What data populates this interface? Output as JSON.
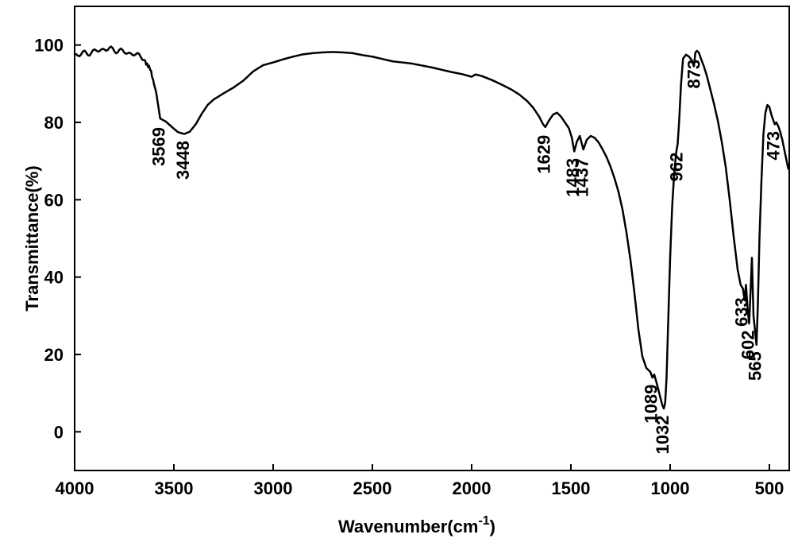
{
  "chart_data": {
    "type": "line",
    "title": "",
    "xlabel": "Wavenumber(cm",
    "xlabel_sup": "-1",
    "xlabel_close": ")",
    "ylabel": "Transmittance(%)",
    "xlim": [
      4000,
      400
    ],
    "ylim": [
      -10,
      110
    ],
    "xticks": [
      4000,
      3500,
      3000,
      2500,
      2000,
      1500,
      1000,
      500
    ],
    "yticks": [
      0,
      20,
      40,
      60,
      80,
      100
    ],
    "grid": false,
    "legend": "none",
    "line_color": "#000000",
    "series": [
      {
        "x": [
          4000,
          3950,
          3900,
          3850,
          3800,
          3750,
          3700,
          3650,
          3620,
          3590,
          3569,
          3540,
          3510,
          3480,
          3448,
          3420,
          3390,
          3360,
          3330,
          3300,
          3250,
          3200,
          3150,
          3100,
          3050,
          3000,
          2950,
          2900,
          2850,
          2800,
          2750,
          2700,
          2650,
          2600,
          2550,
          2500,
          2450,
          2400,
          2350,
          2300,
          2250,
          2200,
          2150,
          2100,
          2050,
          2000,
          1980,
          1950,
          1900,
          1850,
          1800,
          1760,
          1720,
          1690,
          1660,
          1640,
          1629,
          1610,
          1590,
          1570,
          1550,
          1530,
          1510,
          1495,
          1483,
          1470,
          1455,
          1445,
          1437,
          1420,
          1400,
          1380,
          1360,
          1340,
          1320,
          1300,
          1280,
          1260,
          1240,
          1220,
          1200,
          1180,
          1160,
          1140,
          1120,
          1100,
          1089,
          1080,
          1070,
          1060,
          1050,
          1040,
          1032,
          1025,
          1018,
          1010,
          1000,
          990,
          980,
          970,
          962,
          955,
          945,
          935,
          920,
          905,
          890,
          880,
          873,
          865,
          855,
          845,
          830,
          815,
          800,
          780,
          760,
          740,
          720,
          700,
          680,
          660,
          645,
          633,
          625,
          618,
          610,
          602,
          595,
          588,
          580,
          572,
          565,
          558,
          550,
          540,
          530,
          520,
          510,
          500,
          490,
          480,
          473,
          465,
          455,
          445,
          435,
          425,
          415,
          405
        ],
        "y": [
          97.5,
          97.8,
          98.3,
          99.0,
          98.8,
          98.2,
          97.6,
          96.8,
          93.5,
          88.0,
          81.0,
          80.2,
          78.8,
          77.5,
          77.0,
          77.6,
          79.5,
          82.2,
          84.5,
          85.9,
          87.5,
          89.0,
          90.8,
          93.2,
          94.8,
          95.5,
          96.3,
          97.0,
          97.6,
          97.9,
          98.1,
          98.2,
          98.1,
          97.9,
          97.4,
          97.0,
          96.4,
          95.8,
          95.5,
          95.2,
          94.7,
          94.2,
          93.6,
          93.0,
          92.5,
          91.8,
          92.4,
          92.0,
          91.0,
          89.8,
          88.5,
          87.2,
          85.5,
          83.8,
          81.5,
          79.5,
          78.8,
          80.5,
          82.0,
          82.5,
          81.5,
          80.0,
          78.5,
          76.0,
          72.5,
          75.0,
          76.5,
          74.5,
          73.0,
          75.5,
          76.5,
          76.0,
          74.8,
          73.0,
          71.0,
          68.5,
          65.5,
          62.0,
          57.5,
          51.5,
          44.5,
          36.0,
          26.5,
          19.5,
          16.5,
          15.5,
          14.0,
          14.8,
          13.0,
          11.0,
          9.0,
          7.0,
          6.0,
          7.5,
          14.0,
          28.0,
          45.0,
          58.0,
          66.5,
          72.0,
          74.5,
          80.0,
          90.0,
          96.5,
          97.5,
          97.0,
          96.0,
          94.5,
          98.0,
          98.5,
          98.0,
          96.5,
          94.5,
          92.0,
          89.0,
          85.0,
          80.5,
          75.0,
          68.5,
          60.0,
          50.5,
          42.0,
          38.0,
          37.0,
          34.0,
          38.0,
          32.0,
          28.0,
          36.0,
          45.0,
          30.0,
          26.0,
          22.5,
          33.0,
          50.0,
          65.0,
          77.0,
          82.5,
          84.5,
          84.0,
          82.0,
          80.5,
          79.5,
          80.0,
          79.0,
          77.5,
          75.5,
          73.0,
          70.5,
          68.0
        ]
      }
    ],
    "annotations": [
      {
        "text": "3569",
        "x": 3569,
        "y": 80.0
      },
      {
        "text": "3448",
        "x": 3448,
        "y": 76.5
      },
      {
        "text": "1629",
        "x": 1629,
        "y": 78.0
      },
      {
        "text": "1483",
        "x": 1483,
        "y": 72.0
      },
      {
        "text": "1437",
        "x": 1437,
        "y": 72.0
      },
      {
        "text": "1089",
        "x": 1089,
        "y": 13.5
      },
      {
        "text": "1032",
        "x": 1032,
        "y": 5.5
      },
      {
        "text": "962",
        "x": 962,
        "y": 73.5
      },
      {
        "text": "873",
        "x": 873,
        "y": 97.5
      },
      {
        "text": "633",
        "x": 633,
        "y": 36.0
      },
      {
        "text": "602",
        "x": 602,
        "y": 27.5
      },
      {
        "text": "565",
        "x": 565,
        "y": 22.0
      },
      {
        "text": "473",
        "x": 473,
        "y": 79.0
      }
    ]
  }
}
